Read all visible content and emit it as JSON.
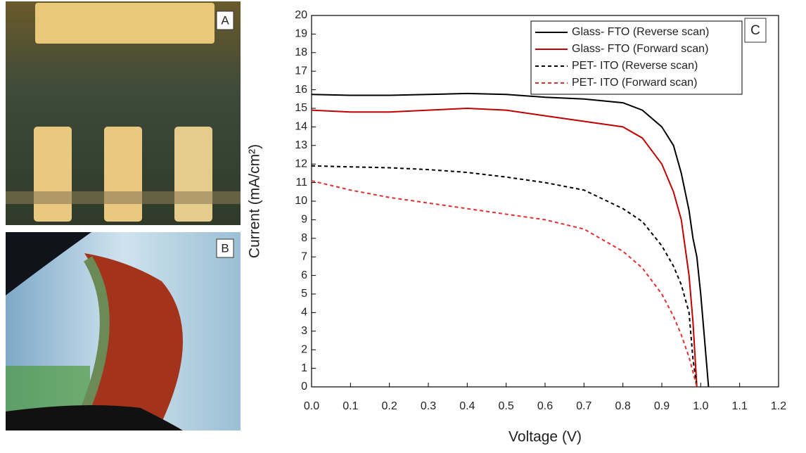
{
  "panels": [
    "A",
    "B"
  ],
  "chart_data": {
    "type": "line",
    "panel_label": "C",
    "xlabel": "Voltage (V)",
    "ylabel": "Current (mA/cm²)",
    "x": [
      0,
      0.1,
      0.2,
      0.3,
      0.4,
      0.5,
      0.6,
      0.7,
      0.8,
      0.85,
      0.9,
      0.93,
      0.95,
      0.97,
      0.98,
      0.99,
      1.0,
      1.01,
      1.02
    ],
    "series": [
      {
        "name": "Glass- FTO (Reverse scan)",
        "color": "#000000",
        "dash": false,
        "values": [
          15.75,
          15.7,
          15.7,
          15.75,
          15.8,
          15.75,
          15.6,
          15.5,
          15.3,
          14.9,
          14.0,
          13.0,
          11.5,
          9.5,
          8.0,
          7.0,
          5.0,
          2.5,
          0
        ]
      },
      {
        "name": "Glass- FTO (Forward scan)",
        "color": "#c00000",
        "dash": false,
        "values": [
          14.9,
          14.8,
          14.8,
          14.9,
          15.0,
          14.9,
          14.6,
          14.3,
          14.0,
          13.4,
          12.0,
          10.5,
          9.0,
          6.0,
          3.5,
          0,
          null,
          null,
          null
        ]
      },
      {
        "name": "PET- ITO (Reverse scan)",
        "color": "#000000",
        "dash": true,
        "values": [
          11.9,
          11.85,
          11.8,
          11.7,
          11.55,
          11.3,
          11.0,
          10.6,
          9.6,
          8.9,
          7.6,
          6.5,
          5.5,
          4.0,
          1.5,
          0,
          null,
          null,
          null
        ]
      },
      {
        "name": "PET- ITO (Forward scan)",
        "color": "#e03030",
        "dash": true,
        "values": [
          11.1,
          10.6,
          10.2,
          9.9,
          9.6,
          9.3,
          9.0,
          8.5,
          7.3,
          6.4,
          5.0,
          3.8,
          2.8,
          1.6,
          0.8,
          0,
          null,
          null,
          null
        ]
      }
    ],
    "xlim": [
      0,
      1.2
    ],
    "ylim": [
      0,
      20
    ],
    "xticks": [
      {
        "value": 0,
        "label": "0.0"
      },
      0.1,
      0.2,
      0.3,
      0.4,
      0.5,
      0.6,
      0.7,
      0.8,
      0.9,
      {
        "value": 1,
        "label": "1.0"
      },
      1.1,
      1.2
    ],
    "yticks": [
      0,
      1,
      2,
      3,
      4,
      5,
      6,
      7,
      8,
      9,
      10,
      11,
      12,
      13,
      14,
      15,
      16,
      17,
      18,
      19,
      20
    ],
    "legend": "upper right"
  }
}
